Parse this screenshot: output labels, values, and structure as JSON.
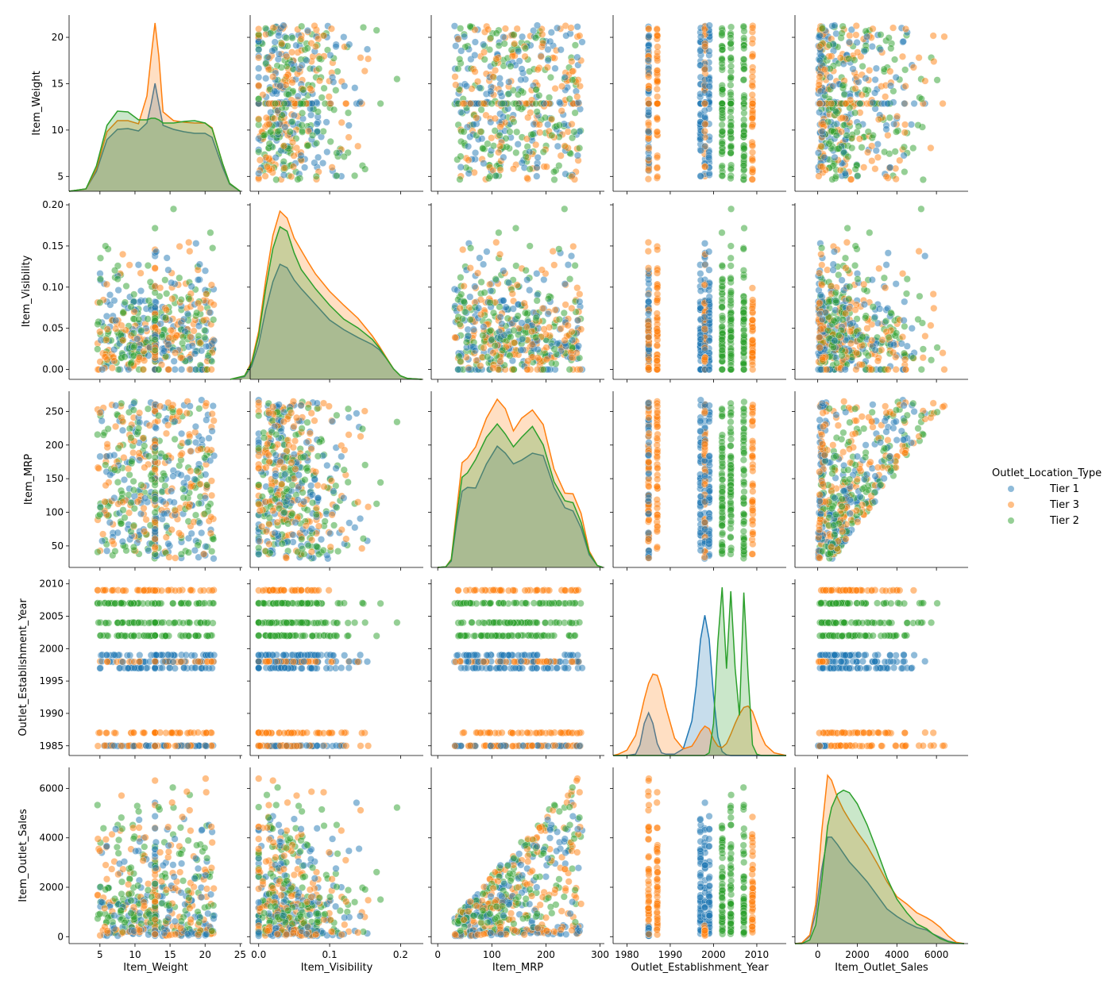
{
  "chart_data": {
    "type": "pairplot",
    "variables": [
      "Item_Weight",
      "Item_Visibility",
      "Item_MRP",
      "Outlet_Establishment_Year",
      "Item_Outlet_Sales"
    ],
    "hue": {
      "title": "Outlet_Location_Type",
      "levels": [
        "Tier 1",
        "Tier 3",
        "Tier 2"
      ],
      "colors": [
        "#1f77b4",
        "#ff7f0e",
        "#2ca02c"
      ]
    },
    "axes": {
      "Item_Weight": {
        "lim": [
          0.6,
          25.3
        ],
        "ticks": [
          5,
          10,
          15,
          20,
          25
        ],
        "ylim": [
          3.4,
          22.4
        ],
        "yticks": [
          5,
          10,
          15,
          20
        ]
      },
      "Item_Visibility": {
        "lim": [
          -0.012,
          0.232
        ],
        "ticks": [
          0.0,
          0.1,
          0.2
        ],
        "ylim": [
          -0.012,
          0.202
        ],
        "yticks": [
          0.0,
          0.05,
          0.1,
          0.15,
          0.2
        ],
        "ytick_labels": [
          "0.00",
          "0.05",
          "0.10",
          "0.15",
          "0.20"
        ]
      },
      "Item_MRP": {
        "lim": [
          -12,
          308
        ],
        "ticks": [
          0,
          100,
          200,
          300
        ],
        "ylim": [
          18,
          280
        ],
        "yticks": [
          50,
          100,
          150,
          200,
          250
        ]
      },
      "Outlet_Establishment_Year": {
        "lim": [
          1976.8,
          2016.8
        ],
        "ticks": [
          1980,
          1990,
          2000,
          2010
        ],
        "ylim": [
          1983.5,
          2010.7
        ],
        "yticks": [
          1985,
          1990,
          1995,
          2000,
          2005,
          2010
        ]
      },
      "Item_Outlet_Sales": {
        "lim": [
          -1150,
          7600
        ],
        "ticks": [
          0,
          2000,
          4000,
          6000
        ],
        "ylim": [
          -280,
          6850
        ],
        "yticks": [
          0,
          2000,
          4000,
          6000
        ]
      }
    },
    "ranges": {
      "Item_Weight": [
        4.6,
        21.35
      ],
      "Item_Visibility": [
        0.0,
        0.195
      ],
      "Item_MRP": [
        31,
        267
      ],
      "Item_Outlet_Sales": [
        35,
        6480
      ]
    },
    "outlet_years": {
      "Tier 1": [
        1985,
        1997,
        1998,
        1999
      ],
      "Tier 3": [
        1985,
        1987,
        1998,
        2009
      ],
      "Tier 2": [
        2002,
        2004,
        2007
      ]
    },
    "diagonal_kde": {
      "Item_Weight": {
        "x": [
          0.6,
          3,
          4.5,
          6,
          7.5,
          9,
          10.5,
          11.7,
          12.3,
          12.86,
          13.4,
          14,
          15.5,
          17,
          18.5,
          20,
          21,
          22.5,
          23.5,
          25
        ],
        "Tier 1": [
          0,
          0.3,
          2.5,
          6.5,
          7.8,
          7.9,
          7.6,
          8.6,
          11,
          13.6,
          11,
          8.3,
          7.8,
          7.5,
          7.3,
          7.3,
          6.8,
          3,
          0.9,
          0
        ],
        "Tier 3": [
          0,
          0.3,
          2.8,
          7.5,
          8.9,
          8.9,
          8.5,
          12,
          17,
          21.2,
          17,
          10,
          8.9,
          8.7,
          8.6,
          8.6,
          8,
          3.5,
          1,
          0
        ],
        "Tier 2": [
          0,
          0.3,
          3.2,
          8.3,
          10.1,
          10,
          9,
          9,
          9.2,
          9.2,
          9,
          8.6,
          8.6,
          8.8,
          8.9,
          8.6,
          7.9,
          3.5,
          1,
          0
        ]
      },
      "Item_Visibility": {
        "x": [
          -0.04,
          -0.02,
          -0.01,
          0.0,
          0.01,
          0.02,
          0.03,
          0.04,
          0.05,
          0.06,
          0.07,
          0.08,
          0.1,
          0.12,
          0.14,
          0.16,
          0.17,
          0.18,
          0.19,
          0.2,
          0.21,
          0.23
        ],
        "Tier 1": [
          0,
          0.3,
          1.5,
          4,
          8,
          11.2,
          13.2,
          12.8,
          11.4,
          10.4,
          9.5,
          8.6,
          6.8,
          5.7,
          4.8,
          4.0,
          3.4,
          2.4,
          1.2,
          0.4,
          0.1,
          0
        ],
        "Tier 3": [
          0,
          0.4,
          2,
          5.5,
          11.5,
          16.5,
          19.3,
          18.5,
          16.2,
          14.8,
          13.4,
          12.1,
          10.1,
          8.5,
          7.0,
          5.0,
          3.8,
          2.5,
          1.2,
          0.4,
          0.1,
          0
        ],
        "Tier 2": [
          0,
          0.4,
          1.8,
          5,
          10.5,
          15,
          17.5,
          17,
          14.5,
          12.6,
          11.5,
          10.4,
          8.5,
          6.9,
          5.9,
          4.6,
          3.6,
          2.4,
          1.2,
          0.4,
          0.1,
          0
        ]
      },
      "Item_MRP": {
        "x": [
          0,
          15,
          25,
          35,
          45,
          55,
          70,
          90,
          110,
          125,
          140,
          155,
          175,
          195,
          215,
          235,
          250,
          265,
          280,
          295,
          305
        ],
        "Tier 1": [
          0,
          0.1,
          1,
          7,
          12,
          12.6,
          12.5,
          16.3,
          19.1,
          18,
          16.3,
          16.9,
          18.0,
          17.6,
          12.6,
          9.4,
          8.9,
          6.2,
          2,
          0.3,
          0
        ],
        "Tier 3": [
          0,
          0.1,
          1.3,
          9,
          16.5,
          17.2,
          19,
          23.5,
          26.5,
          25,
          21.5,
          23.5,
          24.8,
          22.5,
          15.5,
          11.7,
          11.6,
          8.5,
          2.6,
          0.3,
          0
        ],
        "Tier 2": [
          0,
          0.1,
          1.2,
          8,
          14.2,
          14.9,
          17,
          20.5,
          22.6,
          21,
          19,
          20.5,
          22.2,
          19.3,
          13.5,
          10.5,
          10.2,
          7.1,
          2.3,
          0.3,
          0
        ]
      },
      "Outlet_Establishment_Year": {
        "x": [
          1976.8,
          1978,
          1980,
          1982,
          1983,
          1984,
          1985,
          1986,
          1987,
          1988,
          1989,
          1991,
          1993,
          1995,
          1996,
          1997,
          1998,
          1999,
          2000,
          2001,
          2002,
          2003,
          2004,
          2005,
          2006,
          2007,
          2008,
          2009,
          2010,
          2011,
          2012,
          2014,
          2016.8
        ],
        "Tier 1": [
          0,
          0,
          0,
          0.1,
          0.8,
          2.4,
          3.2,
          2.4,
          0.9,
          0.2,
          0.1,
          0.1,
          0.5,
          2.6,
          5.2,
          8.7,
          10.5,
          8.7,
          4.5,
          1.4,
          0.3,
          0.05,
          0,
          0,
          0,
          0,
          0,
          0,
          0,
          0,
          0,
          0,
          0
        ],
        "Tier 3": [
          0,
          0.1,
          0.4,
          1.5,
          2.8,
          4.2,
          5.4,
          6.1,
          6.0,
          5.0,
          3.6,
          1.3,
          0.5,
          0.7,
          1.2,
          1.8,
          2.2,
          2.0,
          1.2,
          0.7,
          0.6,
          0.9,
          1.6,
          2.4,
          3.1,
          3.6,
          3.7,
          3.3,
          2.4,
          1.5,
          0.8,
          0.2,
          0
        ],
        "Tier 2": [
          0,
          0,
          0,
          0,
          0,
          0,
          0,
          0,
          0,
          0,
          0,
          0,
          0,
          0,
          0,
          0,
          0,
          0.2,
          2.4,
          8.5,
          12.6,
          6.5,
          12.3,
          6.5,
          3.0,
          12.2,
          6.0,
          0.8,
          0.1,
          0,
          0,
          0,
          0
        ]
      },
      "Item_Outlet_Sales": {
        "x": [
          -1150,
          -800,
          -400,
          -100,
          200,
          500,
          700,
          1000,
          1300,
          1600,
          2000,
          2500,
          3000,
          3500,
          4000,
          4500,
          5000,
          5500,
          5800,
          6200,
          6600,
          7000,
          7400
        ],
        "Tier 1": [
          0,
          0.05,
          0.6,
          2.5,
          6,
          8.6,
          8.6,
          8.0,
          7.3,
          6.6,
          5.9,
          5.0,
          3.9,
          2.8,
          2.2,
          1.7,
          1.3,
          1.1,
          0.8,
          0.5,
          0.2,
          0.05,
          0
        ],
        "Tier 3": [
          0,
          0.05,
          0.7,
          3.2,
          9,
          13.6,
          13.2,
          11.8,
          10.8,
          10.0,
          9.0,
          7.9,
          6.5,
          5.0,
          3.8,
          3.2,
          2.5,
          2.1,
          1.8,
          1.3,
          0.6,
          0.1,
          0
        ],
        "Tier 2": [
          0,
          0,
          0.3,
          1.5,
          5,
          9.5,
          11,
          12.1,
          12.4,
          12.2,
          11.3,
          9.6,
          7.5,
          5.3,
          3.6,
          2.5,
          1.6,
          1.2,
          0.8,
          0.4,
          0.15,
          0.03,
          0
        ]
      }
    }
  }
}
